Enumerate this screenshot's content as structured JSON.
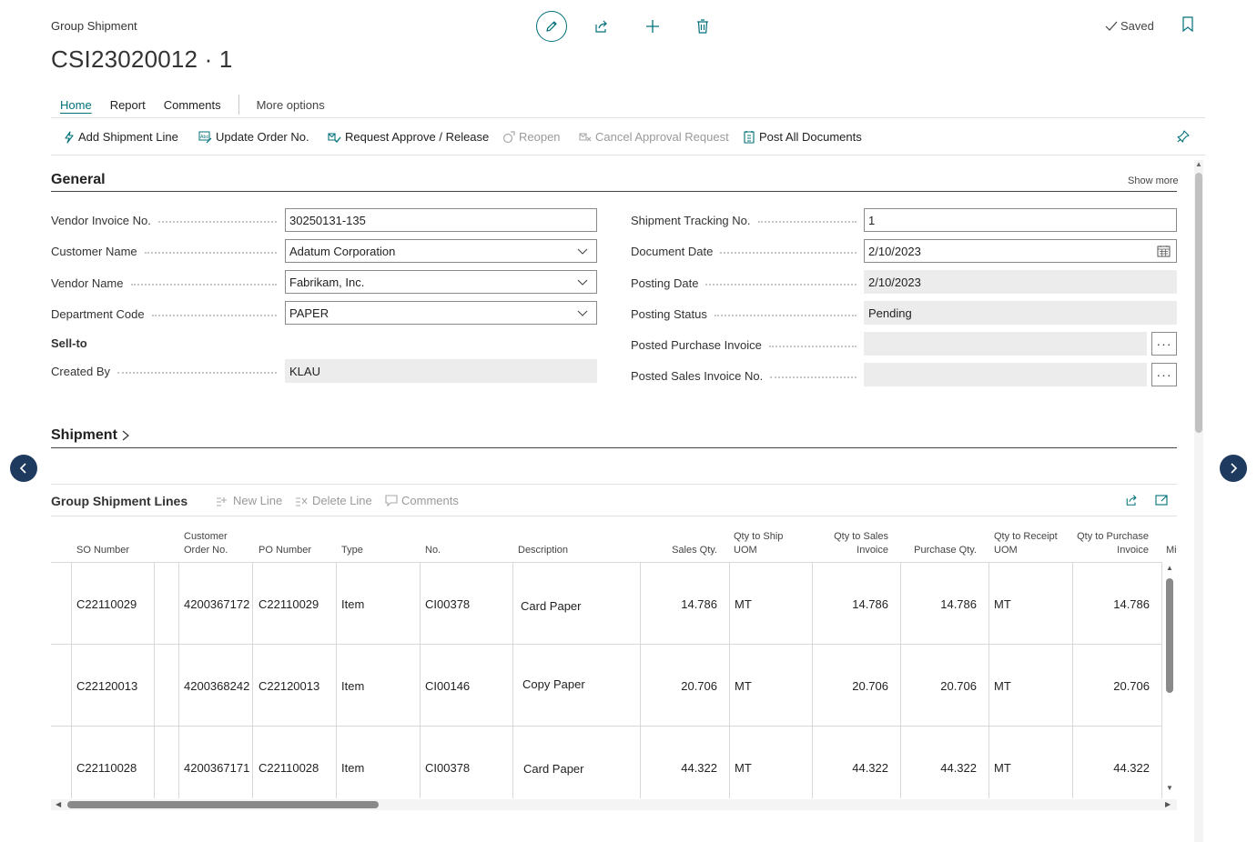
{
  "page": {
    "caption": "Group Shipment",
    "title": "CSI23020012 · 1",
    "saved_label": "Saved"
  },
  "tabs": [
    {
      "label": "Home",
      "active": true
    },
    {
      "label": "Report"
    },
    {
      "label": "Comments"
    },
    {
      "label": "More options"
    }
  ],
  "actions": [
    {
      "label": "Add Shipment Line",
      "icon": "lightning-icon",
      "enabled": true
    },
    {
      "label": "Update Order No.",
      "icon": "abc-edit-icon",
      "enabled": true
    },
    {
      "label": "Request Approve / Release",
      "icon": "approval-send-icon",
      "enabled": true
    },
    {
      "label": "Reopen",
      "icon": "reopen-icon",
      "enabled": false
    },
    {
      "label": "Cancel Approval Request",
      "icon": "cancel-approval-icon",
      "enabled": false
    },
    {
      "label": "Post All Documents",
      "icon": "post-documents-icon",
      "enabled": true
    }
  ],
  "general": {
    "title": "General",
    "show_more": "Show more",
    "sell_to_label": "Sell-to",
    "left_fields": [
      {
        "label": "Vendor Invoice No.",
        "value": "30250131-135",
        "kind": "text"
      },
      {
        "label": "Customer Name",
        "value": "Adatum Corporation",
        "kind": "dropdown"
      },
      {
        "label": "Vendor Name",
        "value": "Fabrikam, Inc.",
        "kind": "dropdown"
      },
      {
        "label": "Department Code",
        "value": "PAPER",
        "kind": "dropdown"
      },
      {
        "label": "Created By",
        "value": "KLAU",
        "kind": "readonly"
      }
    ],
    "right_fields": [
      {
        "label": "Shipment Tracking No.",
        "value": "1",
        "kind": "text"
      },
      {
        "label": "Document Date",
        "value": "2/10/2023",
        "kind": "date"
      },
      {
        "label": "Posting Date",
        "value": "2/10/2023",
        "kind": "readonly"
      },
      {
        "label": "Posting Status",
        "value": "Pending",
        "kind": "readonly"
      },
      {
        "label": "Posted Purchase Invoice",
        "value": "",
        "kind": "lookup"
      },
      {
        "label": "Posted Sales Invoice No.",
        "value": "",
        "kind": "lookup"
      }
    ]
  },
  "shipment": {
    "title": "Shipment"
  },
  "lines": {
    "title": "Group Shipment Lines",
    "buttons": [
      "New Line",
      "Delete Line",
      "Comments"
    ],
    "columns": {
      "so_number": "SO Number",
      "customer_order_l1": "Customer",
      "customer_order_l2": "Order No.",
      "po_number": "PO Number",
      "type": "Type",
      "no": "No.",
      "description": "Description",
      "sales_qty": "Sales Qty.",
      "qty_ship_uom_l1": "Qty to Ship",
      "qty_ship_uom_l2": "UOM",
      "qty_sales_inv_l1": "Qty to Sales",
      "qty_sales_inv_l2": "Invoice",
      "purchase_qty": "Purchase Qty.",
      "qty_receipt_uom_l1": "Qty to Receipt",
      "qty_receipt_uom_l2": "UOM",
      "qty_purch_inv_l1": "Qty to Purchase",
      "qty_purch_inv_l2": "Invoice",
      "overflow": "Mi"
    },
    "rows": [
      {
        "so": "C22110029",
        "cust_order": "4200367172",
        "po": "C22110029",
        "type": "Item",
        "no": "CI00378",
        "desc": "Card Paper",
        "sales_qty": "14.786",
        "ship_uom": "MT",
        "sales_inv": "14.786",
        "purchase_qty": "14.786",
        "receipt_uom": "MT",
        "purch_inv": "14.786"
      },
      {
        "so": "C22120013",
        "cust_order": "4200368242",
        "po": "C22120013",
        "type": "Item",
        "no": "CI00146",
        "desc": "Copy Paper",
        "sales_qty": "20.706",
        "ship_uom": "MT",
        "sales_inv": "20.706",
        "purchase_qty": "20.706",
        "receipt_uom": "MT",
        "purch_inv": "20.706"
      },
      {
        "so": "C22110028",
        "cust_order": "4200367171",
        "po": "C22110028",
        "type": "Item",
        "no": "CI00378",
        "desc": "Card Paper",
        "sales_qty": "44.322",
        "ship_uom": "MT",
        "sales_inv": "44.322",
        "purchase_qty": "44.322",
        "receipt_uom": "MT",
        "purch_inv": "44.322"
      }
    ]
  },
  "colors": {
    "accent": "#00707a",
    "nav_circle": "#1f3a5f"
  }
}
